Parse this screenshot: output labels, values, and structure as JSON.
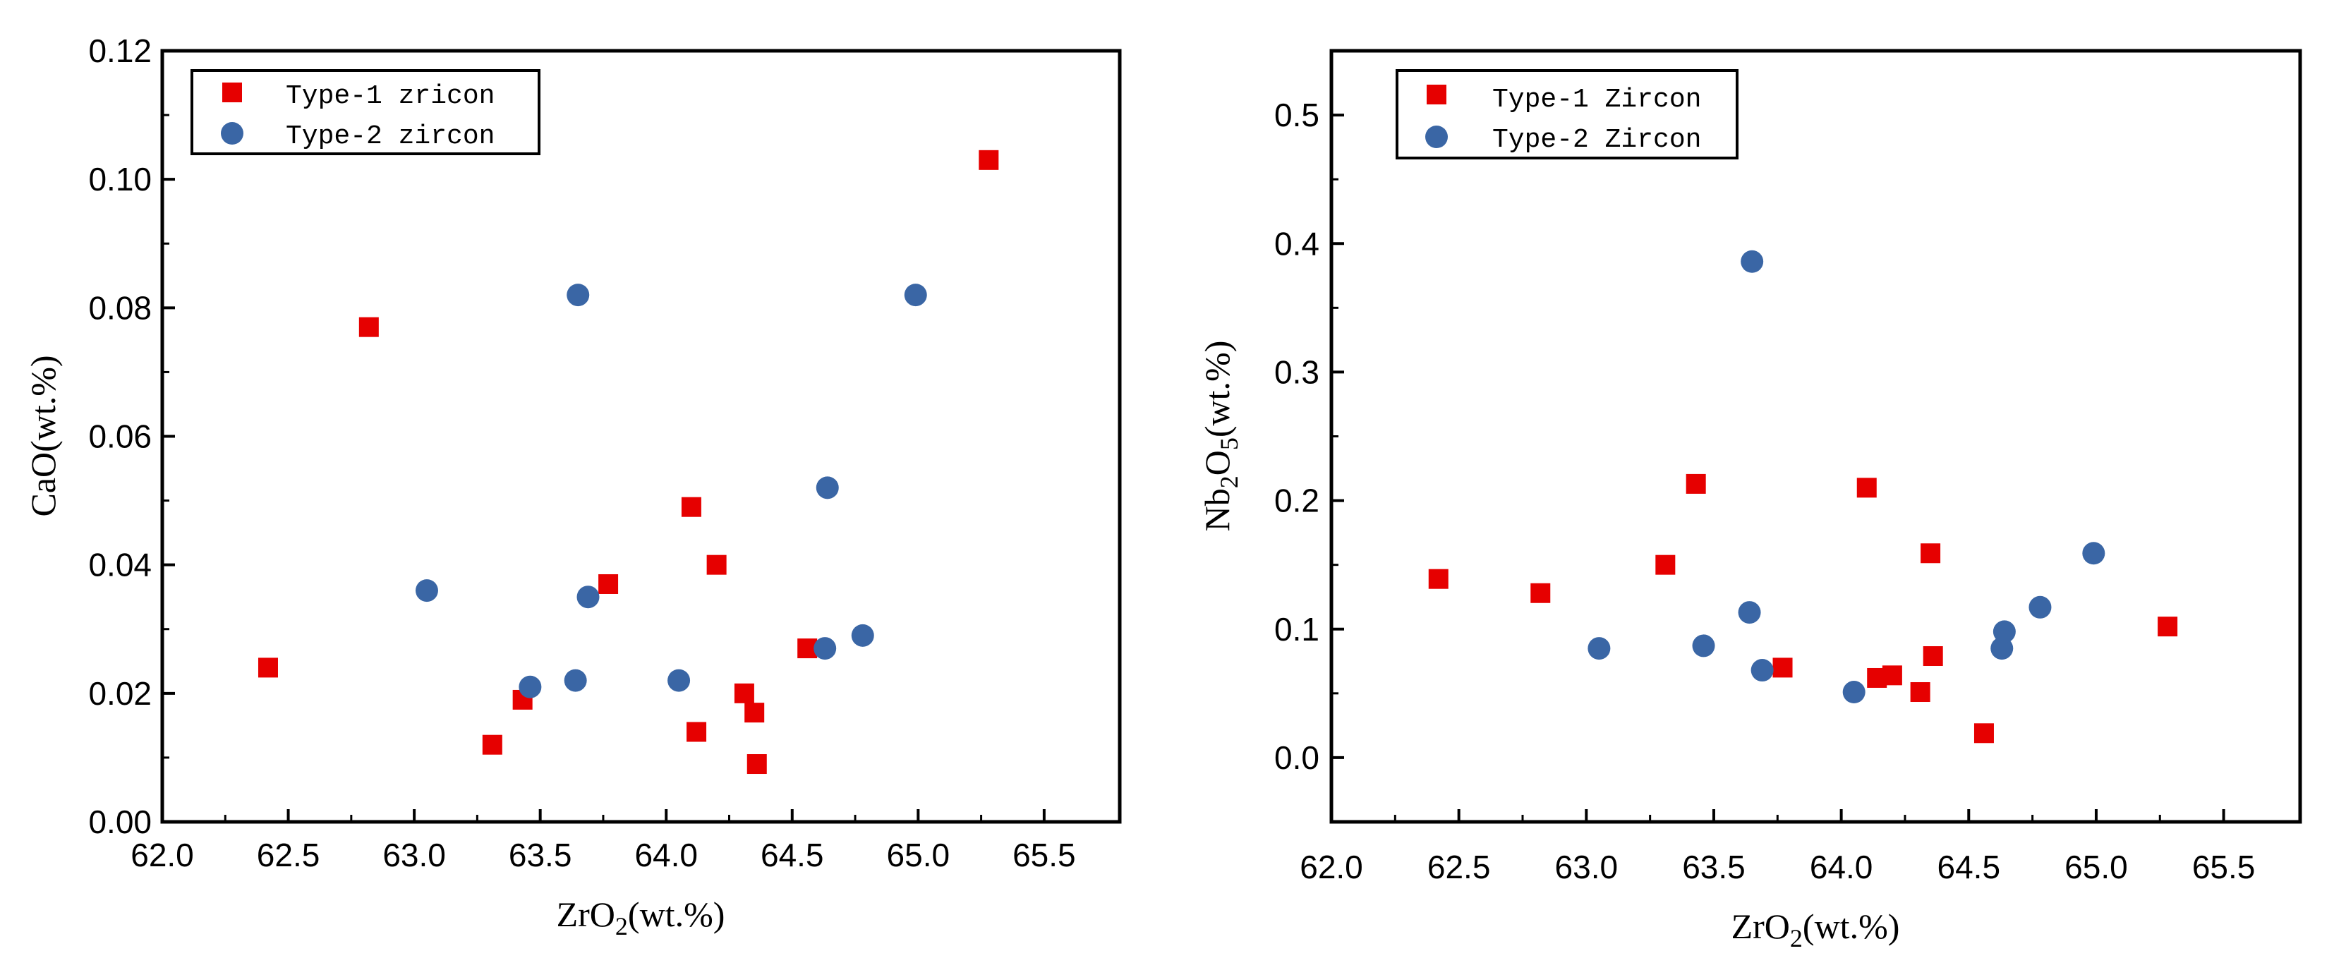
{
  "colors": {
    "type1": "#e60000",
    "type2": "#3a66a5",
    "axis": "#000000"
  },
  "chart_data": [
    {
      "type": "scatter",
      "ylabel": "CaO(wt.%)",
      "xlabel_main": "ZrO",
      "xlabel_sub": "2",
      "xlabel_tail": "(wt.%)",
      "xlim": [
        62.0,
        65.8
      ],
      "ylim": [
        0.0,
        0.12
      ],
      "xticks": [
        "62.0",
        "62.5",
        "63.0",
        "63.5",
        "64.0",
        "64.5",
        "65.0",
        "65.5"
      ],
      "yticks": [
        "0.00",
        "0.02",
        "0.04",
        "0.06",
        "0.08",
        "0.10",
        "0.12"
      ],
      "legend_position": "top-left",
      "series": [
        {
          "name": "Type-1 zricon",
          "marker": "square",
          "x": [
            62.42,
            62.82,
            63.31,
            63.43,
            63.77,
            64.1,
            64.12,
            64.2,
            64.31,
            64.35,
            64.36,
            64.56,
            65.28
          ],
          "y": [
            0.024,
            0.077,
            0.012,
            0.019,
            0.037,
            0.049,
            0.014,
            0.04,
            0.02,
            0.017,
            0.009,
            0.027,
            0.103
          ]
        },
        {
          "name": "Type-2 zircon",
          "marker": "circle",
          "x": [
            63.05,
            63.46,
            63.64,
            63.65,
            63.69,
            64.05,
            64.63,
            64.64,
            64.78,
            64.99
          ],
          "y": [
            0.036,
            0.021,
            0.022,
            0.082,
            0.035,
            0.022,
            0.027,
            0.052,
            0.029,
            0.082
          ]
        }
      ]
    },
    {
      "type": "scatter",
      "ylabel_main": "Nb",
      "ylabel_sub1": "2",
      "ylabel_mid": "O",
      "ylabel_sub2": "5",
      "ylabel_tail": "(wt.%)",
      "xlabel_main": "ZrO",
      "xlabel_sub": "2",
      "xlabel_tail": "(wt.%)",
      "xlim": [
        62.0,
        65.8
      ],
      "ylim": [
        -0.05,
        0.55
      ],
      "xticks": [
        "62.0",
        "62.5",
        "63.0",
        "63.5",
        "64.0",
        "64.5",
        "65.0",
        "65.5"
      ],
      "yticks": [
        "0.0",
        "0.1",
        "0.2",
        "0.3",
        "0.4",
        "0.5"
      ],
      "legend_position": "top-left",
      "series": [
        {
          "name": "Type-1 Zircon",
          "marker": "square",
          "x": [
            62.42,
            62.82,
            63.31,
            63.43,
            63.77,
            64.1,
            64.14,
            64.2,
            64.31,
            64.35,
            64.36,
            64.56,
            65.28
          ],
          "y": [
            0.139,
            0.128,
            0.15,
            0.213,
            0.07,
            0.21,
            0.062,
            0.064,
            0.051,
            0.159,
            0.079,
            0.019,
            0.102
          ]
        },
        {
          "name": "Type-2 Zircon",
          "marker": "circle",
          "x": [
            63.05,
            63.46,
            63.64,
            63.65,
            63.69,
            64.05,
            64.63,
            64.64,
            64.78,
            64.99
          ],
          "y": [
            0.085,
            0.087,
            0.113,
            0.386,
            0.068,
            0.051,
            0.085,
            0.098,
            0.117,
            0.159
          ]
        }
      ]
    }
  ]
}
